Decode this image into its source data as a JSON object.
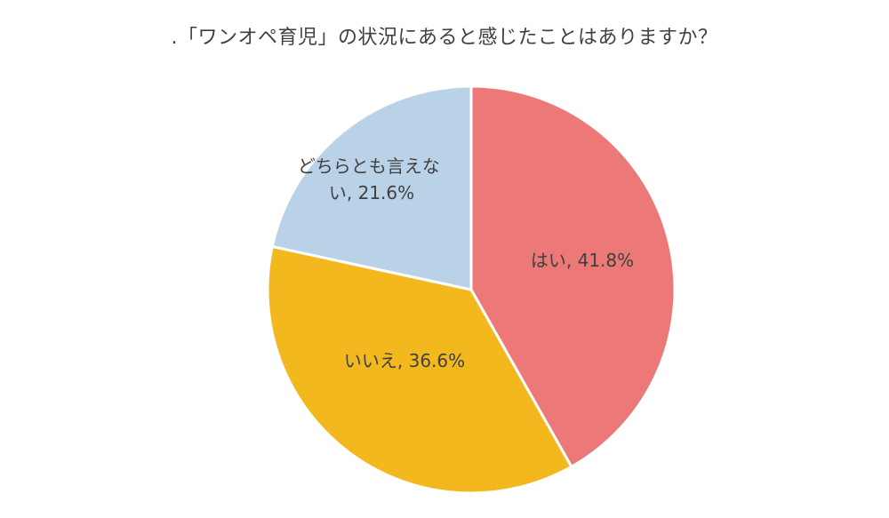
{
  "chart_data": {
    "type": "pie",
    "title": ".「ワンオペ育児」の状況にあると感じたことはありますか？",
    "slices": [
      {
        "label": "はい",
        "value": 41.8,
        "display": "はい, 41.8%",
        "color": "#ec7878"
      },
      {
        "label": "いいえ",
        "value": 36.6,
        "display": "いいえ, 36.6%",
        "color": "#f2b81e"
      },
      {
        "label": "どちらとも言えない",
        "value": 21.6,
        "display_lines": [
          "どちらとも言えな",
          "い, 21.6%"
        ],
        "color": "#bad2e8"
      }
    ],
    "start_angle": "12 o'clock",
    "direction": "clockwise",
    "legend": "none",
    "unit": "%"
  }
}
